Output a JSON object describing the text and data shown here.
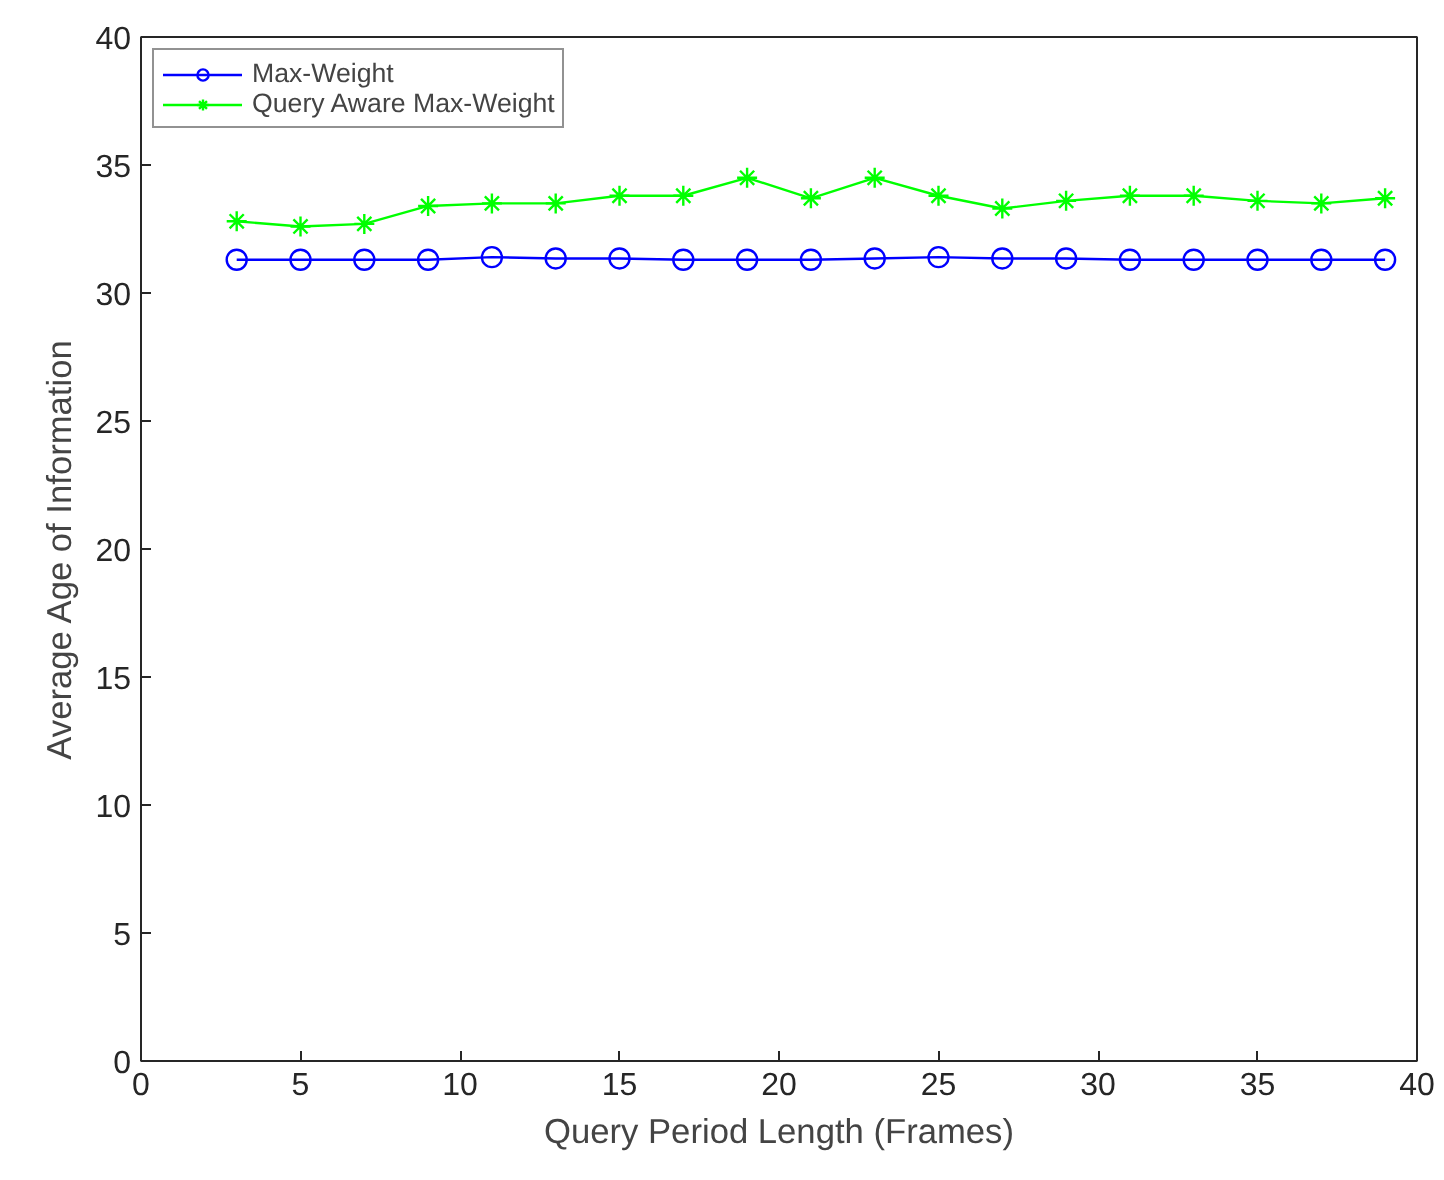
{
  "chart_data": {
    "type": "line",
    "xlabel": "Query Period Length (Frames)",
    "ylabel": "Average Age of Information",
    "x": [
      3,
      5,
      7,
      9,
      11,
      13,
      15,
      17,
      19,
      21,
      23,
      25,
      27,
      29,
      31,
      33,
      35,
      37,
      39
    ],
    "series": [
      {
        "name": "Max-Weight",
        "color": "#0000ff",
        "marker": "circle",
        "values": [
          31.3,
          31.3,
          31.3,
          31.3,
          31.4,
          31.35,
          31.35,
          31.3,
          31.3,
          31.3,
          31.35,
          31.4,
          31.35,
          31.35,
          31.3,
          31.3,
          31.3,
          31.3,
          31.3
        ]
      },
      {
        "name": "Query Aware Max-Weight",
        "color": "#00ff00",
        "marker": "cross",
        "values": [
          32.8,
          32.6,
          32.7,
          33.4,
          33.5,
          33.5,
          33.8,
          33.8,
          34.5,
          33.7,
          34.5,
          33.8,
          33.3,
          33.6,
          33.8,
          33.8,
          33.6,
          33.5,
          33.7
        ]
      }
    ],
    "xlim": [
      0,
      40
    ],
    "xticks": [
      0,
      5,
      10,
      15,
      20,
      25,
      30,
      35,
      40
    ],
    "ylim": [
      0,
      40
    ],
    "yticks": [
      0,
      5,
      10,
      15,
      20,
      25,
      30,
      35,
      40
    ],
    "grid": false,
    "legend": "top left",
    "line_style": "solid"
  }
}
